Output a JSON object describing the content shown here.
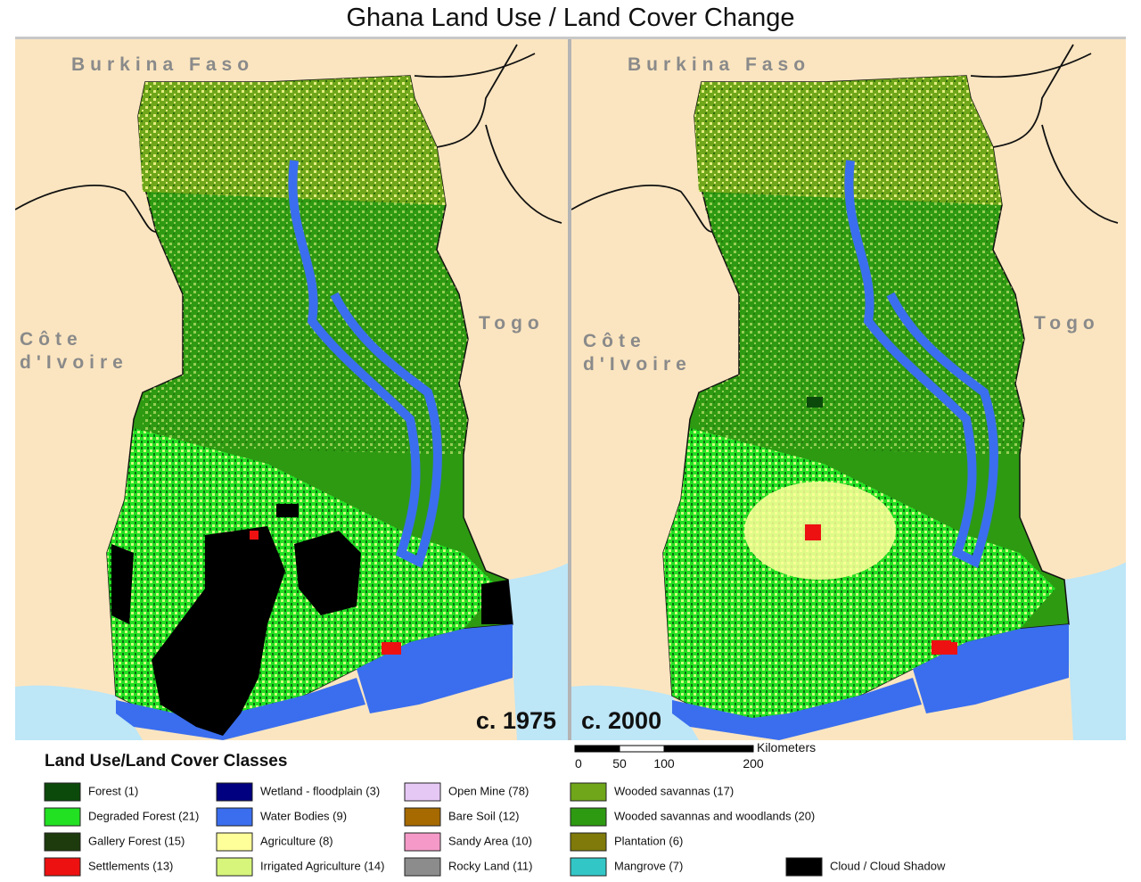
{
  "title": "Ghana Land Use / Land Cover Change",
  "panels": [
    {
      "year": "c. 1975",
      "labels": {
        "north": "Burkina Faso",
        "west_1": "Côte",
        "west_2": "d'Ivoire",
        "east": "Togo"
      }
    },
    {
      "year": "c. 2000",
      "labels": {
        "north": "Burkina Faso",
        "west_1": "Côte",
        "west_2": "d'Ivoire",
        "east": "Togo"
      }
    }
  ],
  "scale_bar": {
    "unit": "Kilometers",
    "ticks": [
      0,
      50,
      100,
      200
    ]
  },
  "legend": {
    "title": "Land Use/Land Cover Classes",
    "items": [
      {
        "label": "Forest (1)",
        "color": "#0b4a0b"
      },
      {
        "label": "Degraded Forest (21)",
        "color": "#22e022"
      },
      {
        "label": "Gallery Forest (15)",
        "color": "#1d3b0c"
      },
      {
        "label": "Settlements (13)",
        "color": "#ee1111"
      },
      {
        "label": "Wetland - floodplain (3)",
        "color": "#000080"
      },
      {
        "label": "Water Bodies (9)",
        "color": "#3a6eee"
      },
      {
        "label": "Agriculture (8)",
        "color": "#ffff99"
      },
      {
        "label": "Irrigated Agriculture (14)",
        "color": "#d6f57a"
      },
      {
        "label": "Open Mine (78)",
        "color": "#e6c8f5"
      },
      {
        "label": "Bare Soil (12)",
        "color": "#a66a00"
      },
      {
        "label": "Sandy Area (10)",
        "color": "#f59ac8"
      },
      {
        "label": "Rocky Land (11)",
        "color": "#8c8c8c"
      },
      {
        "label": "Wooded savannas (17)",
        "color": "#6fa61a"
      },
      {
        "label": "Wooded savannas and woodlands (20)",
        "color": "#2e9a12"
      },
      {
        "label": "Plantation (6)",
        "color": "#7f7a0a"
      },
      {
        "label": "Mangrove (7)",
        "color": "#33c6c6"
      },
      {
        "label": "Cloud / Cloud Shadow",
        "color": "#000000"
      }
    ]
  }
}
